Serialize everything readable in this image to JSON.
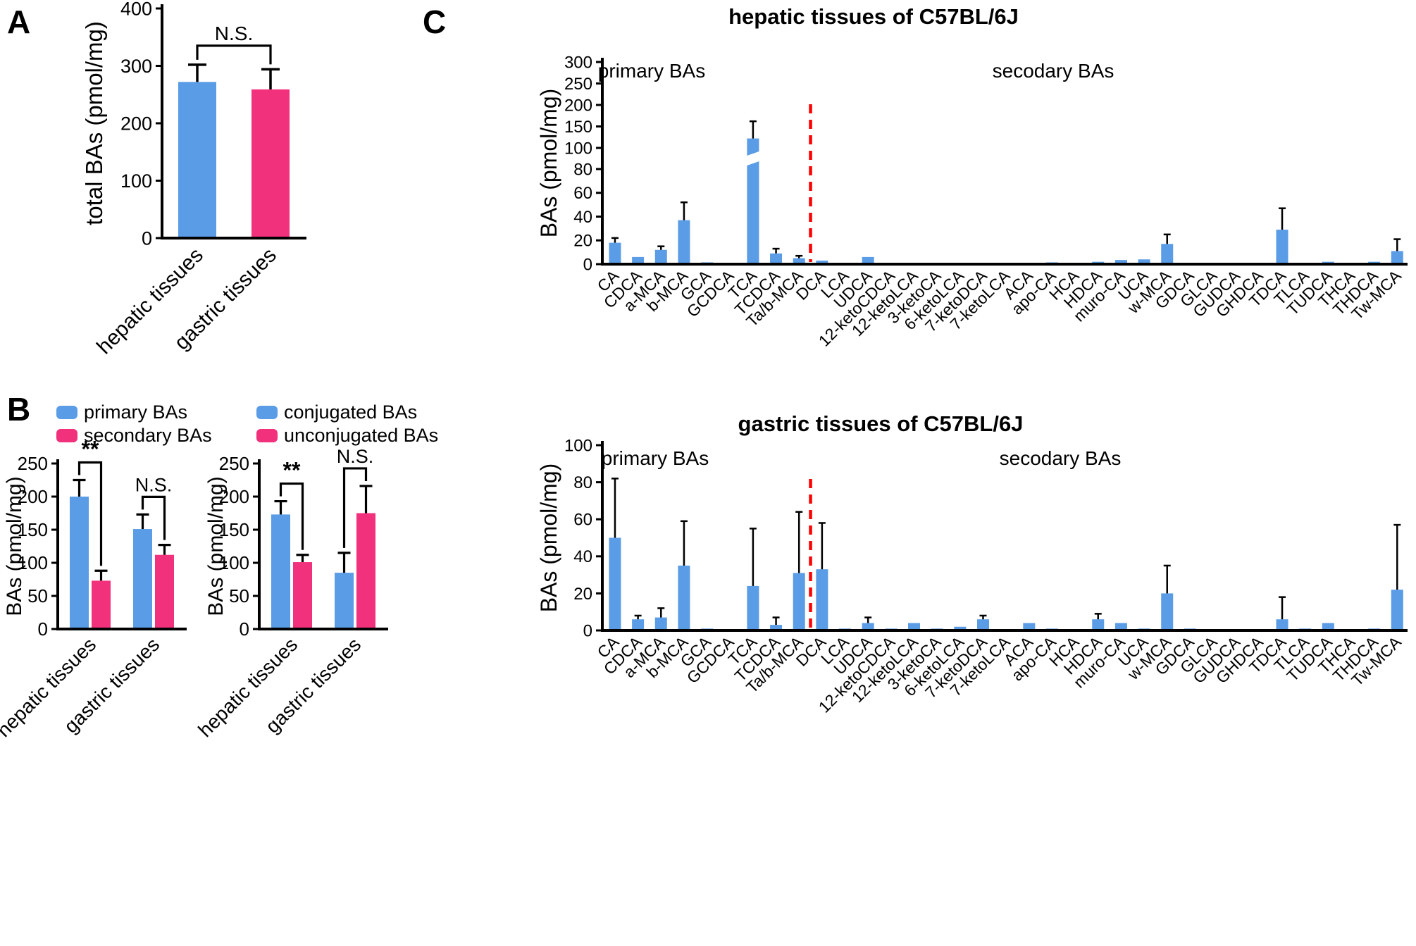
{
  "panels": {
    "a": "A",
    "b": "B",
    "c": "C"
  },
  "colors": {
    "blue": "#5B9CE6",
    "pink": "#F2317C",
    "divider_red": "#FF0000"
  },
  "chart_data": [
    {
      "id": "panel-a-total-bas",
      "type": "bar",
      "title": "",
      "ylabel": "total BAs (pmol/mg)",
      "categories": [
        "hepatic tissues",
        "gastric tissues"
      ],
      "values": [
        272,
        259
      ],
      "errors": [
        30,
        35
      ],
      "bar_colors": [
        "#5B9CE6",
        "#F2317C"
      ],
      "ylim": [
        0,
        400
      ],
      "yticks": [
        0,
        100,
        200,
        300,
        400
      ],
      "annotations": [
        {
          "text": "N.S.",
          "bars": [
            0,
            1
          ]
        }
      ]
    },
    {
      "id": "panel-b-primary-vs-secondary",
      "type": "grouped-bar",
      "ylabel": "BAs (pmol/mg)",
      "categories": [
        "hepatic tissues",
        "gastric tissues"
      ],
      "series": [
        {
          "name": "primary BAs",
          "color": "#5B9CE6",
          "values": [
            200,
            151
          ],
          "errors": [
            25,
            22
          ]
        },
        {
          "name": "secondary BAs",
          "color": "#F2317C",
          "values": [
            73,
            112
          ],
          "errors": [
            15,
            15
          ]
        }
      ],
      "ylim": [
        0,
        250
      ],
      "yticks": [
        0,
        50,
        100,
        150,
        200,
        250
      ],
      "annotations": [
        {
          "text": "**",
          "group": 0
        },
        {
          "text": "N.S.",
          "group": 1
        }
      ]
    },
    {
      "id": "panel-b-conjugated-vs-unconjugated",
      "type": "grouped-bar",
      "ylabel": "BAs (pmol/mg)",
      "categories": [
        "hepatic tissues",
        "gastric tissues"
      ],
      "series": [
        {
          "name": "conjugated BAs",
          "color": "#5B9CE6",
          "values": [
            173,
            85
          ],
          "errors": [
            20,
            30
          ]
        },
        {
          "name": "unconjugated BAs",
          "color": "#F2317C",
          "values": [
            101,
            175
          ],
          "errors": [
            11,
            41
          ]
        }
      ],
      "ylim": [
        0,
        250
      ],
      "yticks": [
        0,
        50,
        100,
        150,
        200,
        250
      ],
      "annotations": [
        {
          "text": "**",
          "group": 0
        },
        {
          "text": "N.S.",
          "group": 1
        }
      ]
    },
    {
      "id": "panel-c-hepatic",
      "type": "bar",
      "title": "hepatic tissues of C57BL/6J",
      "ylabel": "BAs (pmol/mg)",
      "region_labels": [
        "primary BAs",
        "secodary BAs"
      ],
      "divider_after_index": 8,
      "divider_color": "#FF0000",
      "color": "#5B9CE6",
      "broken_axis": {
        "lower": [
          0,
          80
        ],
        "upper": [
          100,
          300
        ],
        "lower_ticks": [
          0,
          20,
          40,
          60,
          80
        ],
        "upper_ticks": [
          100,
          150,
          200,
          250,
          300
        ]
      },
      "categories": [
        "CA",
        "CDCA",
        "a-MCA",
        "b-MCA",
        "GCA",
        "GCDCA",
        "TCA",
        "TCDCA",
        "Ta/b-MCA",
        "DCA",
        "LCA",
        "UDCA",
        "12-ketoCDCA",
        "12-ketoLCA",
        "3-ketoCA",
        "6-ketoLCA",
        "7-ketoDCA",
        "7-ketoLCA",
        "ACA",
        "apo-CA",
        "HCA",
        "HDCA",
        "muro-CA",
        "UCA",
        "w-MCA",
        "GDCA",
        "GLCA",
        "GUDCA",
        "GHDCA",
        "TDCA",
        "TLCA",
        "TUDCA",
        "THCA",
        "THDCA",
        "Tw-MCA"
      ],
      "values": [
        18,
        6,
        12,
        37,
        1.5,
        1,
        122,
        9,
        5,
        3,
        0.5,
        6,
        0.3,
        0.2,
        0.2,
        1,
        0.3,
        0.2,
        1,
        1.5,
        0.5,
        2,
        3.5,
        4,
        17,
        0.5,
        0.2,
        0.3,
        1,
        29,
        1,
        2,
        0.3,
        2,
        11
      ],
      "errors": [
        4,
        1,
        3,
        15,
        0.5,
        0.3,
        40,
        4,
        2,
        1,
        0.3,
        1,
        0.2,
        0.1,
        0.1,
        0.5,
        0.2,
        0.1,
        0.5,
        0.5,
        0.3,
        1,
        1.5,
        1,
        8,
        0.3,
        0.1,
        0.2,
        0.5,
        18,
        0.5,
        1,
        0.2,
        1,
        10
      ]
    },
    {
      "id": "panel-c-gastric",
      "type": "bar",
      "title": "gastric tissues of C57BL/6J",
      "ylabel": "BAs (pmol/mg)",
      "region_labels": [
        "primary BAs",
        "secodary BAs"
      ],
      "divider_after_index": 8,
      "divider_color": "#FF0000",
      "color": "#5B9CE6",
      "ylim": [
        0,
        100
      ],
      "yticks": [
        0,
        20,
        40,
        60,
        80,
        100
      ],
      "categories": [
        "CA",
        "CDCA",
        "a-MCA",
        "b-MCA",
        "GCA",
        "GCDCA",
        "TCA",
        "TCDCA",
        "Ta/b-MCA",
        "DCA",
        "LCA",
        "UDCA",
        "12-ketoCDCA",
        "12-ketoLCA",
        "3-ketoCA",
        "6-ketoLCA",
        "7-ketoDCA",
        "7-ketoLCA",
        "ACA",
        "apo-CA",
        "HCA",
        "HDCA",
        "muro-CA",
        "UCA",
        "w-MCA",
        "GDCA",
        "GLCA",
        "GUDCA",
        "GHDCA",
        "TDCA",
        "TLCA",
        "TUDCA",
        "THCA",
        "THDCA",
        "Tw-MCA"
      ],
      "values": [
        50,
        6,
        7,
        35,
        1,
        0.5,
        24,
        3,
        31,
        33,
        1,
        4,
        1,
        4,
        1,
        2,
        6,
        0.5,
        4,
        1,
        0.5,
        6,
        4,
        1,
        20,
        1,
        0.2,
        0.3,
        0.3,
        6,
        1,
        4,
        0.3,
        1,
        22
      ],
      "errors": [
        32,
        2,
        5,
        24,
        0.5,
        0.3,
        31,
        4,
        33,
        25,
        0.5,
        3,
        0.5,
        1,
        0.5,
        1,
        2,
        0.3,
        1,
        0.5,
        0.3,
        3,
        1,
        0.5,
        15,
        0.5,
        0.1,
        0.2,
        0.2,
        12,
        0.5,
        1,
        0.2,
        0.5,
        35
      ]
    }
  ]
}
